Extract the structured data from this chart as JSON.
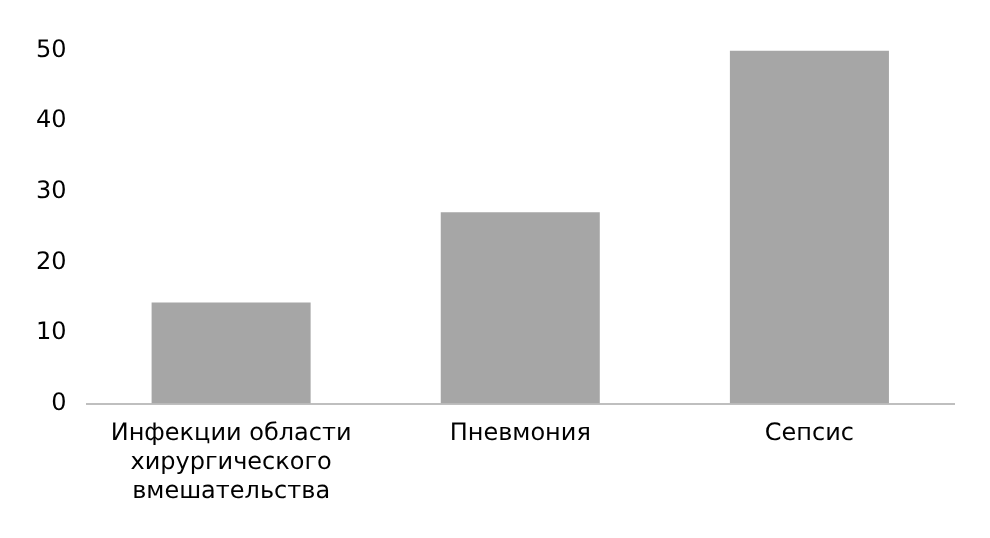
{
  "chart_data": {
    "type": "bar",
    "categories": [
      "Инфекции области хирургического вмешательства",
      "Пневмония",
      "Сепсис"
    ],
    "values": [
      14.3,
      27.1,
      50
    ],
    "color": "#a6a6a6",
    "ylim": [
      0,
      50
    ],
    "yticks": [
      0,
      10,
      20,
      30,
      40,
      50
    ],
    "grid": false,
    "legend": false
  }
}
